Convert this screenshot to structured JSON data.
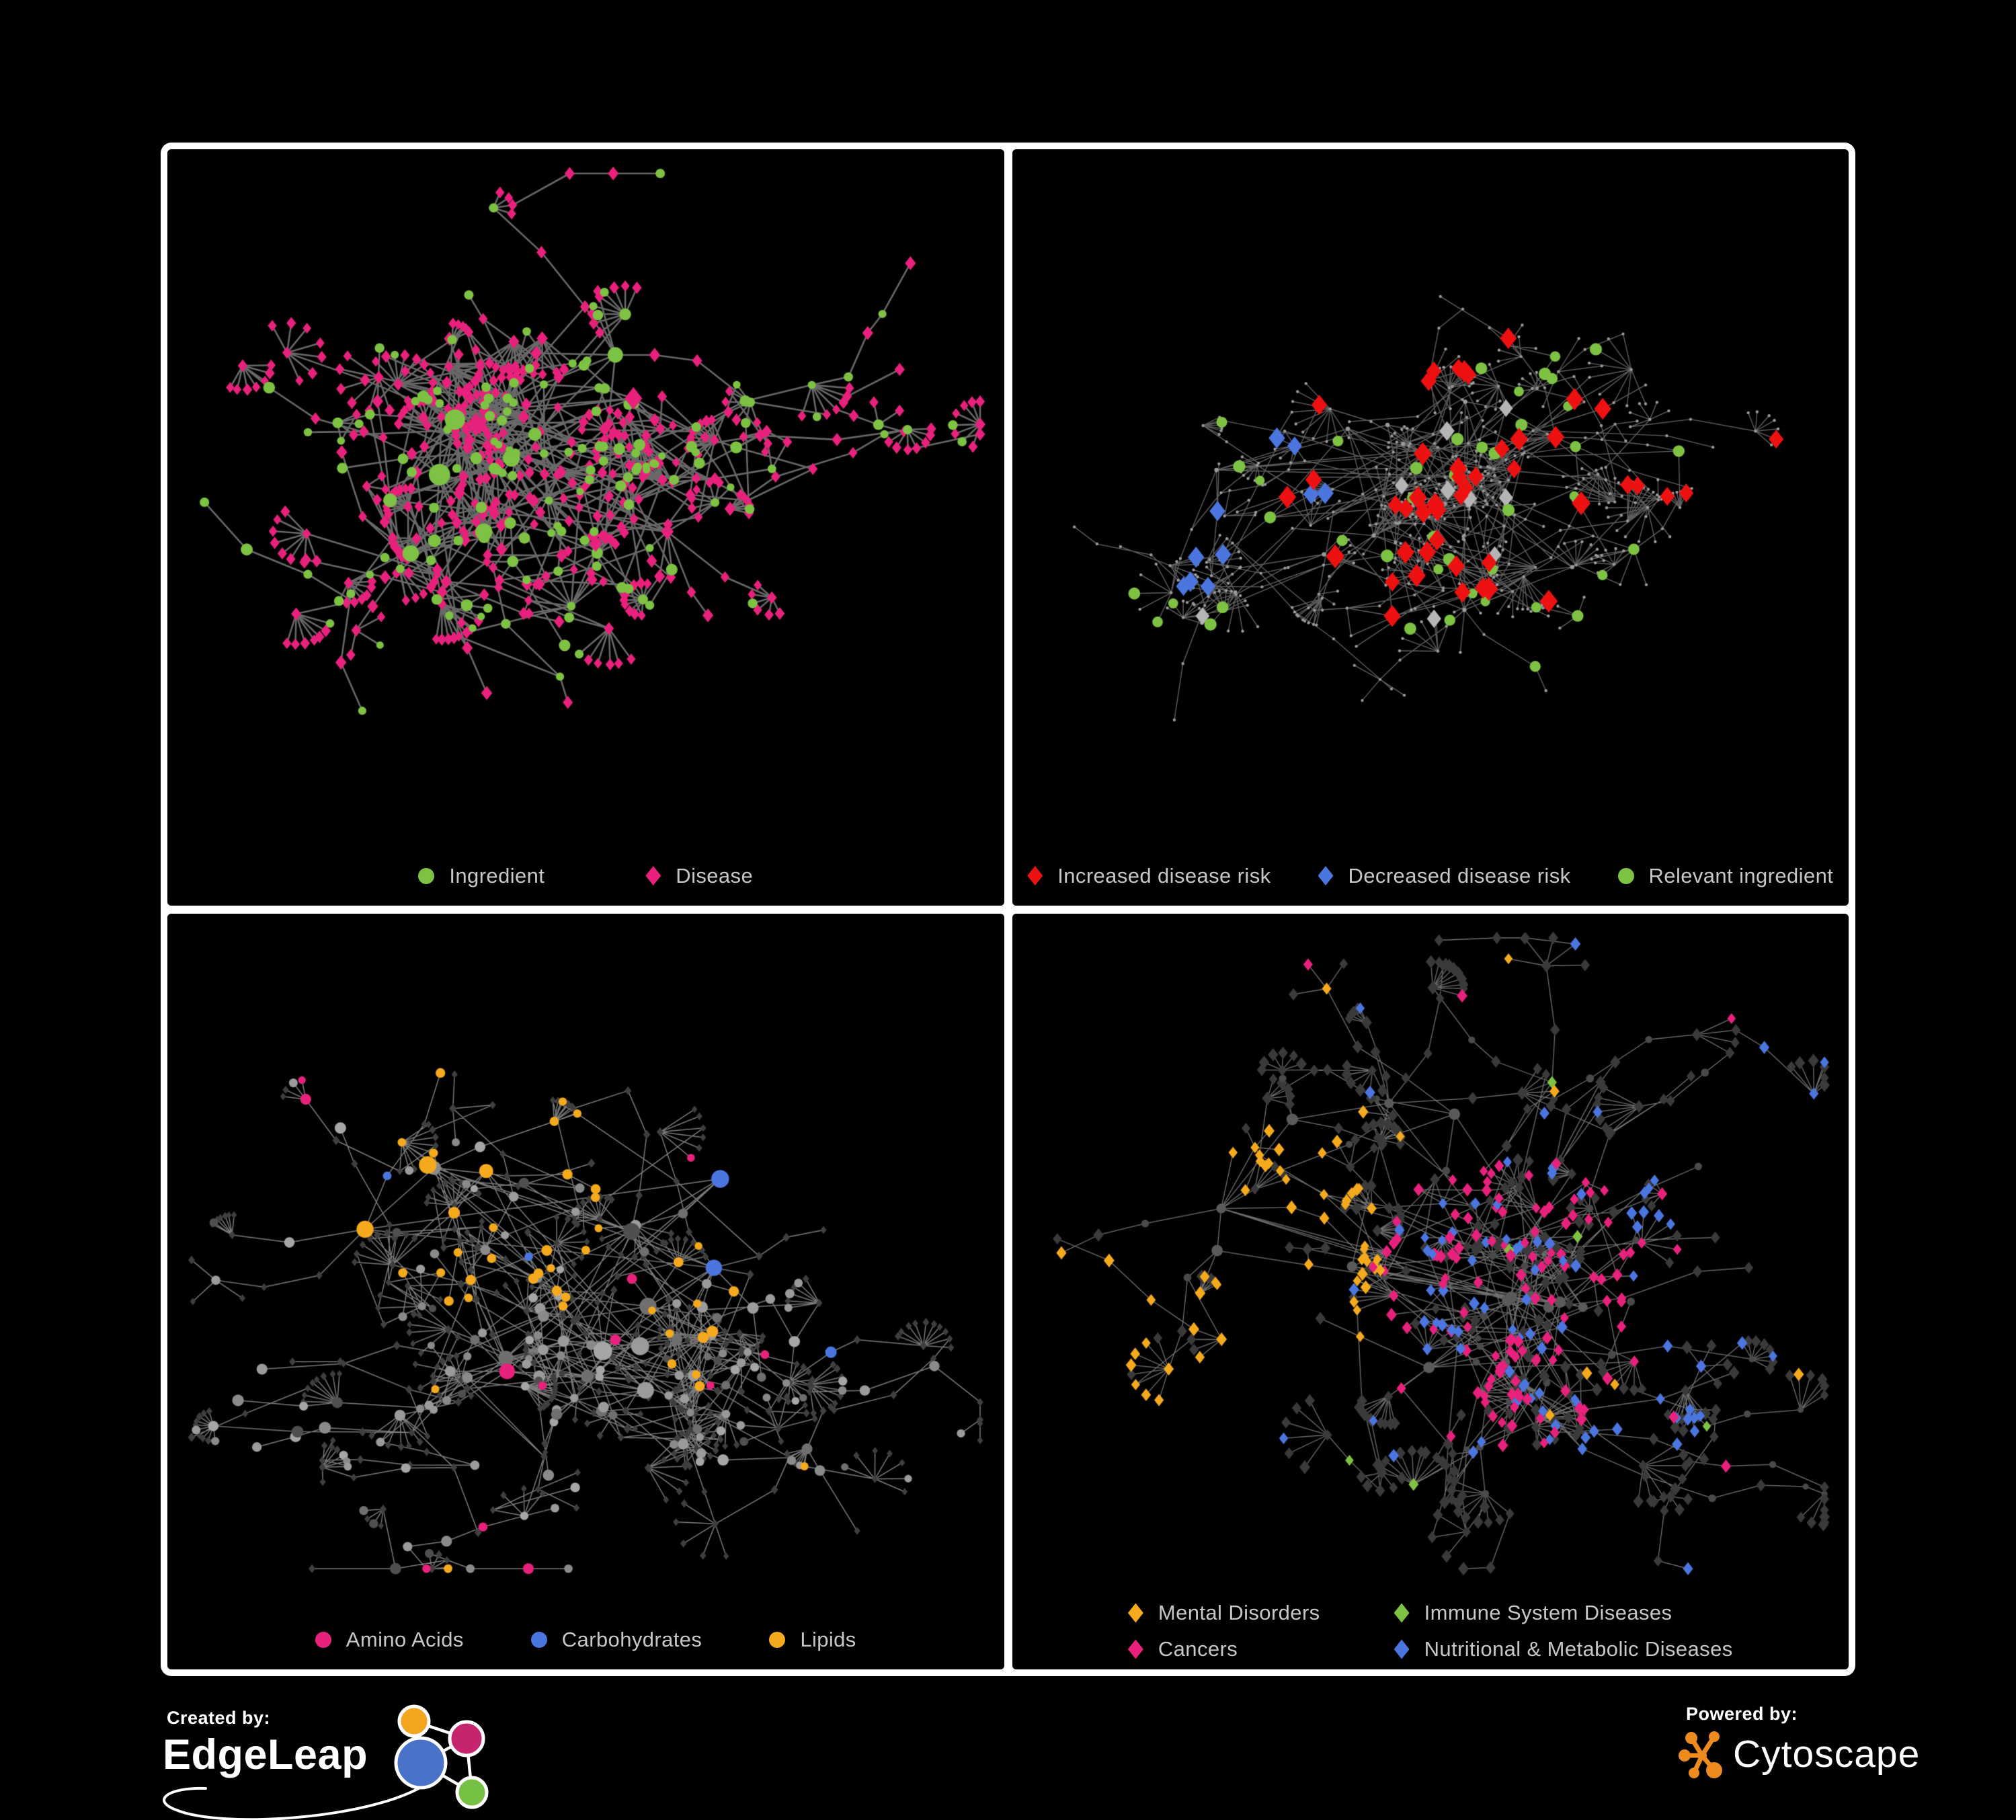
{
  "page": {
    "background": "#000000",
    "frame_color": "#ffffff"
  },
  "colors": {
    "green": "#7dc242",
    "pink": "#e8217c",
    "red": "#ee1111",
    "blue": "#4b76e0",
    "orange": "#f5a91c",
    "gray_node": "#9a9a9a",
    "dark_diamond": "#3a3a3a",
    "legend_text": "#c7c7c7"
  },
  "panels": [
    {
      "id": "ingredient-disease",
      "description": "Dense network of ingredient nodes (green circles) and disease nodes (pink diamonds) joined by gray edges",
      "legend": [
        {
          "label": "Ingredient",
          "shape": "circle",
          "color": "#7dc242"
        },
        {
          "label": "Disease",
          "shape": "diamond",
          "color": "#e8217c"
        }
      ],
      "network": {
        "seed": 11,
        "node_count": 640,
        "hubs": 14,
        "edge_color": "#6e6e6e",
        "edge_width": 2.6
      }
    },
    {
      "id": "disease-risk",
      "description": "Sparse gray network with highlighted diamonds for disease-risk effects and green circles for relevant ingredients",
      "legend": [
        {
          "label": "Increased disease risk",
          "shape": "diamond",
          "color": "#ee1111"
        },
        {
          "label": "Decreased disease risk",
          "shape": "diamond",
          "color": "#4b76e0"
        },
        {
          "label": "Relevant ingredient",
          "shape": "circle",
          "color": "#7dc242"
        }
      ],
      "network": {
        "seed": 23,
        "node_count": 680,
        "hubs": 16,
        "edge_color": "#6f6f6f",
        "edge_width": 1.4,
        "highlight_counts": {
          "red": 42,
          "blue": 10,
          "gray": 9,
          "green": 46
        }
      }
    },
    {
      "id": "nutrient-classes",
      "description": "Gray ingredient/disease network with ingredient circles highlighted by nutrient class",
      "legend": [
        {
          "label": "Amino Acids",
          "shape": "circle",
          "color": "#e8217c"
        },
        {
          "label": "Carbohydrates",
          "shape": "circle",
          "color": "#4b76e0"
        },
        {
          "label": "Lipids",
          "shape": "circle",
          "color": "#f5a91c"
        }
      ],
      "network": {
        "seed": 37,
        "node_count": 660,
        "hubs": 14,
        "edge_color": "#9a9a9a",
        "edge_width": 1.5
      }
    },
    {
      "id": "disease-classes",
      "description": "Dark diamond network with disease nodes highlighted by disease class clusters",
      "legend": [
        {
          "label": "Mental Disorders",
          "shape": "diamond",
          "color": "#f5a91c"
        },
        {
          "label": "Immune System Diseases",
          "shape": "diamond",
          "color": "#7dc242"
        },
        {
          "label": "Cancers",
          "shape": "diamond",
          "color": "#e8217c"
        },
        {
          "label": "Nutritional & Metabolic Diseases",
          "shape": "diamond",
          "color": "#4b76e0"
        }
      ],
      "network": {
        "seed": 53,
        "node_count": 700,
        "hubs": 15,
        "edge_color": "#8c8c8c",
        "edge_width": 1.3
      }
    }
  ],
  "footer": {
    "created_by": "Created by:",
    "edgeleap": "EdgeLeap",
    "powered_by": "Powered by:",
    "cytoscape": "Cytoscape"
  }
}
